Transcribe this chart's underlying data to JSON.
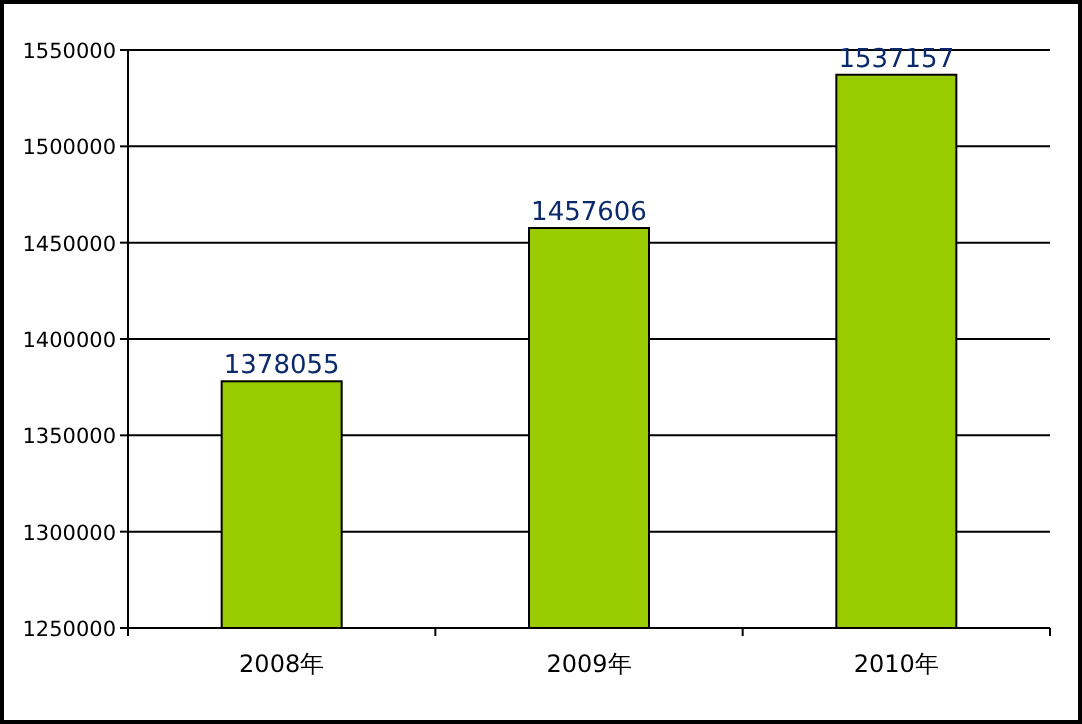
{
  "chart_data": {
    "type": "bar",
    "categories": [
      "2008年",
      "2009年",
      "2010年"
    ],
    "values": [
      1378055,
      1457606,
      1537157
    ],
    "color": "#99cc00",
    "ylim": [
      1250000,
      1550000
    ],
    "yticks": [
      1250000,
      1300000,
      1350000,
      1400000,
      1450000,
      1500000,
      1550000
    ],
    "grid": "y",
    "data_labels": true
  }
}
